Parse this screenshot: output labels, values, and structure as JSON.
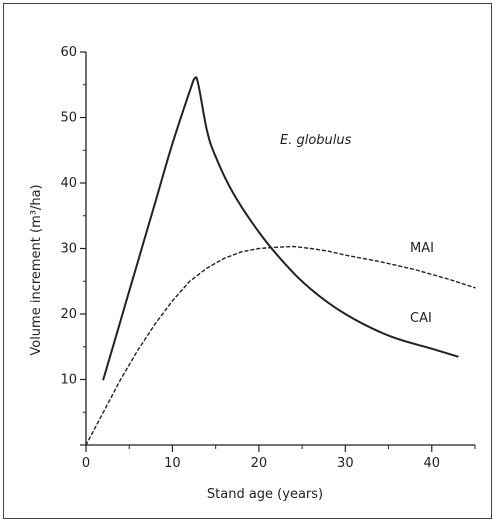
{
  "chart_data": {
    "type": "line",
    "title": "",
    "annotation": "E. globulus",
    "xlabel": "Stand age (years)",
    "ylabel": "Volume increment (m³/ha)",
    "xlim": [
      0,
      45
    ],
    "ylim": [
      0,
      60
    ],
    "xticks": [
      0,
      10,
      20,
      30,
      40
    ],
    "yticks": [
      0,
      10,
      20,
      30,
      40,
      50,
      60
    ],
    "xtick_labels": [
      "0",
      "10",
      "20",
      "30",
      "40"
    ],
    "ytick_labels": [
      "",
      "10",
      "20",
      "30",
      "40",
      "50",
      "60"
    ],
    "grid": false,
    "series": [
      {
        "name": "CAI",
        "style": "solid",
        "color": "#222222",
        "x": [
          2,
          4,
          6,
          8,
          10,
          12,
          12.6,
          13,
          14,
          15,
          17,
          20,
          23,
          26,
          30,
          35,
          40,
          43
        ],
        "y": [
          10,
          19,
          28,
          37,
          46,
          54,
          56,
          55,
          48,
          44,
          38.5,
          32.5,
          27.7,
          23.8,
          20,
          16.7,
          14.7,
          13.5
        ]
      },
      {
        "name": "MAI",
        "style": "dashed",
        "color": "#222222",
        "x": [
          0,
          2,
          4,
          6,
          8,
          10,
          12,
          14,
          16,
          18,
          20,
          22,
          24,
          26,
          28,
          30,
          34,
          38,
          42,
          45
        ],
        "y": [
          0,
          5,
          10,
          14.5,
          18.5,
          22,
          25,
          27,
          28.5,
          29.5,
          30,
          30.2,
          30.3,
          30,
          29.6,
          29,
          28,
          26.8,
          25.3,
          24
        ]
      }
    ]
  }
}
